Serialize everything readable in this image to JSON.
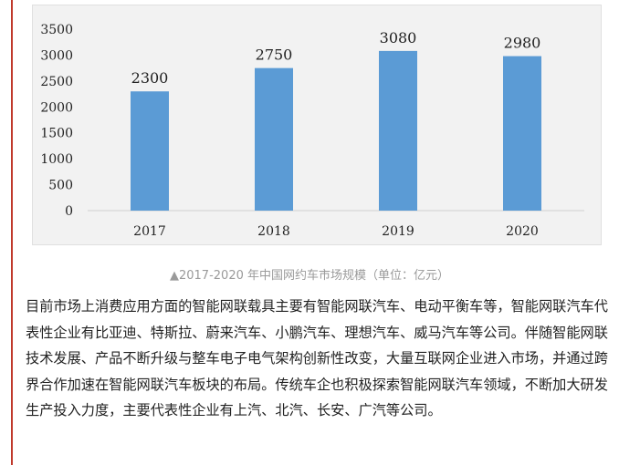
{
  "chart_data": {
    "type": "bar",
    "categories": [
      "2017",
      "2018",
      "2019",
      "2020"
    ],
    "values": [
      2300,
      2750,
      3080,
      2980
    ],
    "data_labels": [
      "2300",
      "2750",
      "3080",
      "2980"
    ],
    "y_ticks": [
      "0",
      "500",
      "1000",
      "1500",
      "2000",
      "2500",
      "3000",
      "3500"
    ],
    "ylim": [
      0,
      3500
    ],
    "grid": false,
    "bar_color": "#5b9bd5"
  },
  "caption": "▲2017-2020 年中国网约车市场规模（单位：亿元）",
  "paragraphs": [
    "目前市场上消费应用方面的智能网联载具主要有智能网联汽车、电动平衡车等，智能网联汽车代表性企业有比亚迪、特斯拉、蔚来汽车、小鹏汽车、理想汽车、威马汽车等公司。伴随智能网联技术发展、产品不断升级与整车电子电气架构创新性改变，大量互联网企业进入市场，并通过跨界合作加速在智能网联汽车板块的布局。传统车企也积极探索智能网联汽车领域，不断加大研发生产投入力度，主要代表性企业有上汽、北汽、长安、广汽等公司。"
  ],
  "colors": {
    "accent_rule": "#c0392b"
  }
}
